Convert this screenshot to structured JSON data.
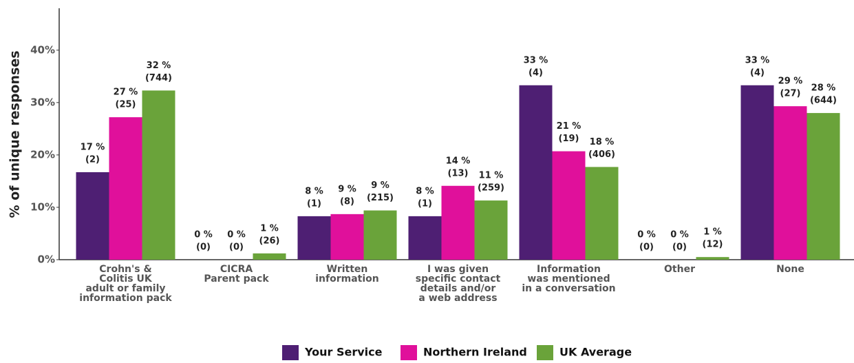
{
  "chart_data": {
    "type": "bar",
    "y_label": "% of unique responses",
    "categories": [
      [
        "Crohn's &",
        "Colitis UK",
        "adult or family",
        "information pack"
      ],
      [
        "CICRA",
        "Parent pack"
      ],
      [
        "Written",
        "information"
      ],
      [
        "I was given",
        "specific contact",
        "details and/or",
        "a web address"
      ],
      [
        "Information",
        "was mentioned",
        "in a conversation"
      ],
      [
        "Other"
      ],
      [
        "None"
      ]
    ],
    "series": [
      {
        "name": "Your Service",
        "color": "#4e1f73",
        "values": [
          16.7,
          0,
          8.3,
          8.3,
          33.3,
          0,
          33.3
        ],
        "value_labels": [
          "17 %",
          "0 %",
          "8 %",
          "8 %",
          "33 %",
          "0 %",
          "33 %"
        ],
        "count_labels": [
          "(2)",
          "(0)",
          "(1)",
          "(1)",
          "(4)",
          "(0)",
          "(4)"
        ]
      },
      {
        "name": "Northern Ireland",
        "color": "#e0109b",
        "values": [
          27.2,
          0,
          8.7,
          14.1,
          20.7,
          0,
          29.3
        ],
        "value_labels": [
          "27 %",
          "0 %",
          "9 %",
          "14 %",
          "21 %",
          "0 %",
          "29 %"
        ],
        "count_labels": [
          "(25)",
          "(0)",
          "(8)",
          "(13)",
          "(19)",
          "(0)",
          "(27)"
        ]
      },
      {
        "name": "UK Average",
        "color": "#6aa33a",
        "values": [
          32.3,
          1.2,
          9.4,
          11.3,
          17.7,
          0.5,
          28.0
        ],
        "value_labels": [
          "32 %",
          "1 %",
          "9 %",
          "11 %",
          "18 %",
          "1 %",
          "28 %"
        ],
        "count_labels": [
          "(744)",
          "(26)",
          "(215)",
          "(259)",
          "(406)",
          "(12)",
          "(644)"
        ]
      }
    ],
    "ylim": [
      0,
      48
    ],
    "yticks": [
      {
        "value": 0,
        "label": "0%"
      },
      {
        "value": 10,
        "label": "10%"
      },
      {
        "value": 20,
        "label": "20%"
      },
      {
        "value": 30,
        "label": "30%"
      },
      {
        "value": 40,
        "label": "40%"
      }
    ],
    "legend": "bottom"
  }
}
